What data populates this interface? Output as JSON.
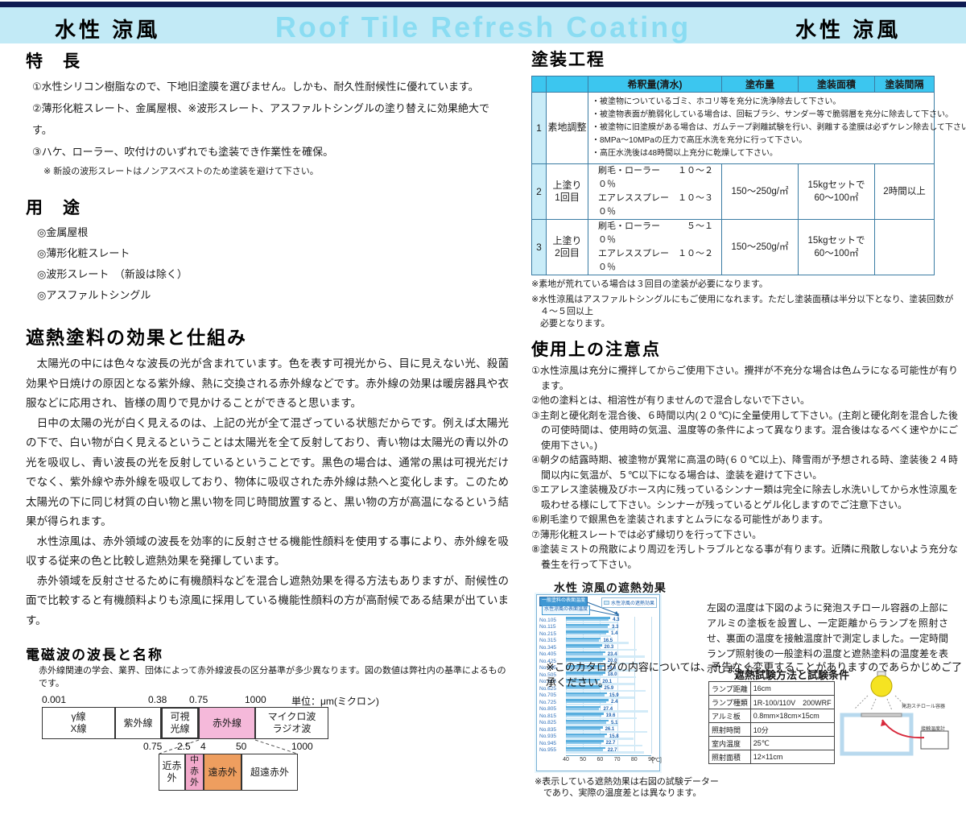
{
  "header": {
    "left_title": "水性 涼風",
    "center_title": "Roof Tile Refresh Coating",
    "right_title": "水性 涼風"
  },
  "features": {
    "heading": "特　長",
    "items": [
      "①水性シリコン樹脂なので、下地旧塗膜を選びません。しかも、耐久性耐候性に優れています。",
      "②薄形化粧スレート、金属屋根、※波形スレート、アスファルトシングルの塗り替えに効果絶大です。",
      "③ハケ、ローラー、吹付けのいずれでも塗装でき作業性を確保。"
    ],
    "note": "※ 新設の波形スレートはノンアスベストのため塗装を避けて下さい。"
  },
  "uses": {
    "heading": "用　途",
    "items": [
      "◎金属屋根",
      "◎薄形化粧スレート",
      "◎波形スレート　（新設は除く）",
      "◎アスファルトシングル"
    ]
  },
  "mechanism": {
    "heading": "遮熱塗料の効果と仕組み",
    "paragraphs": [
      "　太陽光の中には色々な波長の光が含まれています。色を表す可視光から、目に見えない光、殺菌効果や日焼けの原因となる紫外線、熱に交換される赤外線などです。赤外線の効果は暖房器具や衣服などに応用され、皆様の周りで見かけることができると思います。",
      "　日中の太陽の光が白く見えるのは、上記の光が全て混ざっている状態だからです。例えば太陽光の下で、白い物が白く見えるということは太陽光を全て反射しており、青い物は太陽光の青以外の光を吸収し、青い波長の光を反射しているということです。黒色の場合は、通常の黒は可視光だけでなく、紫外線や赤外線を吸収しており、物体に吸収された赤外線は熱へと変化します。このため太陽光の下に同じ材質の白い物と黒い物を同じ時間放置すると、黒い物の方が高温になるという結果が得られます。",
      "　水性涼風は、赤外領域の波長を効率的に反射させる機能性顔料を使用する事により、赤外線を吸収する従来の色と比較し遮熱効果を発揮しています。",
      "　赤外領域を反射させるために有機顔料などを混合し遮熱効果を得る方法もありますが、耐候性の面で比較すると有機顔料よりも涼風に採用している機能性顔料の方が高耐候である結果が出ています。"
    ]
  },
  "spectrum": {
    "heading": "電磁波の波長と名称",
    "note": "赤外線関連の学会、業界、団体によって赤外線波長の区分基準が多少異なります。図の数値は弊社内の基準によるものです。",
    "unit": "単位：μm(ミクロン)",
    "top_scale": [
      "0.001",
      "0.38",
      "0.75",
      "1000"
    ],
    "top_boxes": [
      "γ線\nX線",
      "紫外線",
      "可視\n光線",
      "赤外線",
      "マイクロ波\nラジオ波"
    ],
    "sub_scale": [
      "0.75",
      "2.5",
      "4",
      "50",
      "1000"
    ],
    "sub_boxes": [
      "近赤外",
      "中\n赤\n外",
      "遠赤外",
      "超遠赤外"
    ]
  },
  "process": {
    "heading": "塗装工程",
    "headers": [
      "希釈量(清水)",
      "塗布量",
      "塗装面積",
      "塗装間隔"
    ],
    "row1": {
      "num": "1",
      "name": "素地調整",
      "bullets": [
        "・被塗物についているゴミ、ホコリ等を充分に洗浄除去して下さい。",
        "・被塗物表面が脆弱化している場合は、回転ブラシ、サンダー等で脆弱層を充分に除去して下さい。",
        "・被塗物に旧塗膜がある場合は、ガムテープ剥離試験を行い、剥離する塗膜は必ずケレン除去して下さい。",
        "・8MPa～10MPaの圧力で高圧水洗を充分に行って下さい。",
        "・高圧水洗後は48時間以上充分に乾燥して下さい。"
      ]
    },
    "row2": {
      "num": "2",
      "name": "上塗り\n1回目",
      "dilution": "刷毛・ローラー　　１０～２０％\nエアレススプレー　１０～３０％",
      "amount": "150～250g/㎡",
      "area": "15kgセットで\n60～100㎡",
      "interval": "2時間以上"
    },
    "row3": {
      "num": "3",
      "name": "上塗り\n2回目",
      "dilution": "刷毛・ローラー　　　５～１０％\nエアレススプレー　１０～２０％",
      "amount": "150～250g/㎡",
      "area": "15kgセットで\n60～100㎡",
      "interval": ""
    },
    "notes": [
      "※素地が荒れている場合は３回目の塗装が必要になります。",
      "※水性涼風はアスファルトシングルにもご使用になれます。ただし塗装面積は半分以下となり、塗装回数が４～５回以上\n必要となります。"
    ]
  },
  "cautions": {
    "heading": "使用上の注意点",
    "items": [
      "①水性涼風は充分に攪拌してからご使用下さい。攪拌が不充分な場合は色ムラになる可能性が有ります。",
      "②他の塗料とは、相溶性が有りませんので混合しないで下さい。",
      "③主剤と硬化剤を混合後、６時間以内(２０℃)に全量使用して下さい。(主剤と硬化剤を混合した後の可使時間は、使用時の気温、温度等の条件によって異なります。混合後はなるべく速やかにご使用下さい。)",
      "④朝夕の結露時期、被塗物が異常に高温の時(６０℃以上)、降雪雨が予想される時、塗装後２４時間以内に気温が、５℃以下になる場合は、塗装を避けて下さい。",
      "⑤エアレス塗装機及びホース内に残っているシンナー類は完全に除去し水洗いしてから水性涼風を吸わせる様にして下さい。シンナーが残っているとゲル化しますのでご注意下さい。",
      "⑥刷毛塗りで銀黒色を塗装されますとムラになる可能性があります。",
      "⑦薄形化粧スレートでは必ず縁切りを行って下さい。",
      "⑧塗装ミストの飛散により周辺を汚しトラブルとなる事が有ります。近隣に飛散しないよう充分な養生を行って下さい。"
    ]
  },
  "shield": {
    "title": "水性 涼風の遮熱効果",
    "callout_general": "一般塗料の表面温度",
    "callout_suzukaze": "水性涼風の表面温度",
    "legend": "水性涼風の遮熱効果",
    "note": "※表示している遮熱効果は右図の試験データー\n　であり、実際の温度差とは異なります。",
    "description": "左図の温度は下図のように発泡スチロール容器の上部にアルミの塗板を設置し、一定距離からランプを照射させ、裏面の温度を接触温度計で測定しました。一定時間ランプ照射後の一般塗料の温度と遮熱塗料の温度差を表示しました。"
  },
  "test": {
    "title": "遮熱試験方法と試験条件",
    "rows": [
      [
        "ランプ距離",
        "16cm"
      ],
      [
        "ランプ種類",
        "1R-100/110V　200WRF"
      ],
      [
        "アルミ板",
        "0.8mm×18cm×15cm"
      ],
      [
        "照射時間",
        "10分"
      ],
      [
        "室内温度",
        "25℃"
      ],
      [
        "照射面積",
        "12×11cm"
      ]
    ],
    "label_container": "発泡スチロール容器",
    "label_thermo": "接触温度計"
  },
  "footer": "※このカタログの内容については、予告なく変更することがありますのであらかじめご了承ください。",
  "colors": {
    "band": "#c2eaf6",
    "table_header": "#3cc6ef",
    "bar_general_pale": "#d3ebf8",
    "bar_suzukaze": "#58aede",
    "bar_mid": "#8ec9ec",
    "infrared_pink": "#f5b9da",
    "mid_ir_pink": "#f2a9cb",
    "far_ir_orange": "#ee9e5f"
  },
  "chart_data": {
    "type": "bar",
    "orientation": "horizontal",
    "title": "水性 涼風の遮熱効果",
    "xlabel": "温度",
    "ylabel": "色番号",
    "xlim": [
      40,
      90
    ],
    "xticks": [
      40,
      50,
      60,
      70,
      80,
      90
    ],
    "x_unit": "[℃]",
    "grid": true,
    "legend_position": "top",
    "categories": [
      "No.105",
      "No.115",
      "No.215",
      "No.315",
      "No.345",
      "No.405",
      "No.425",
      "No.445",
      "No.505",
      "No.615",
      "No.625",
      "No.705",
      "No.725",
      "No.805",
      "No.815",
      "No.825",
      "No.835",
      "No.935",
      "No.945",
      "No.955"
    ],
    "series": [
      {
        "name": "一般塗料の表面温度",
        "values": [
          70.3,
          68.8,
          66.4,
          77.0,
          81.3,
          86.4,
          83.0,
          82.1,
          81.0,
          80.1,
          86.9,
          79.9,
          67.4,
          87.9,
          81.6,
          70.1,
          87.6,
          79.8,
          84.7,
          85.7
        ]
      },
      {
        "name": "水性涼風の表面温度",
        "values": [
          66.0,
          65.5,
          65.0,
          60.5,
          61.0,
          63.0,
          63.0,
          62.5,
          63.0,
          60.0,
          61.0,
          64.0,
          65.0,
          60.5,
          62.0,
          65.0,
          61.5,
          64.0,
          62.0,
          63.0
        ]
      },
      {
        "name": "水性涼風の遮熱効果(温度差)",
        "values": [
          4.3,
          3.3,
          1.4,
          16.5,
          20.3,
          23.4,
          20.0,
          19.6,
          18.0,
          20.1,
          25.9,
          15.9,
          2.4,
          27.4,
          19.6,
          5.1,
          26.1,
          15.8,
          22.7,
          22.7
        ]
      }
    ],
    "bar_labels": [
      "4.3",
      "3.3",
      "1.4",
      "16.5",
      "20.3",
      "23.4",
      "20.0",
      "19.6",
      "18.0",
      "20.1",
      "25.9",
      "15.9",
      "2.4",
      "27.4",
      "19.6",
      "5.1",
      "26.1",
      "15.8",
      "22.7",
      "22.7"
    ]
  }
}
